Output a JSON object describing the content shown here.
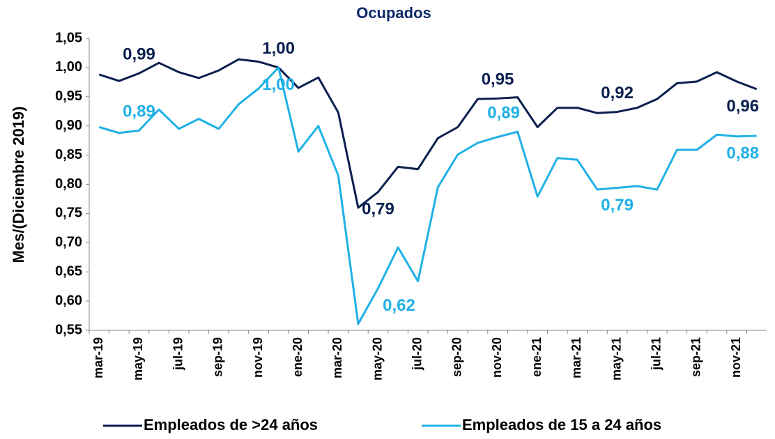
{
  "chart_data": {
    "type": "line",
    "title": "Ocupados",
    "y_label": "Mes/(Diciembre 2019)",
    "categories": [
      "mar-19",
      null,
      "may-19",
      null,
      "jul-19",
      null,
      "sep-19",
      null,
      "nov-19",
      null,
      "ene-20",
      null,
      "mar-20",
      null,
      "may-20",
      null,
      "jul-20",
      null,
      "sep-20",
      null,
      "nov-20",
      null,
      "ene-21",
      null,
      "mar-21",
      null,
      "may-21",
      null,
      "jul-21",
      null,
      "sep-21",
      null,
      "nov-21",
      null
    ],
    "series": [
      {
        "name": "Empleados de >24 años",
        "color": "#0b1f4f",
        "values": [
          0.988,
          0.977,
          0.99,
          1.008,
          0.992,
          0.982,
          0.995,
          1.014,
          1.01,
          1.0,
          0.965,
          0.983,
          0.923,
          0.76,
          0.787,
          0.83,
          0.826,
          0.879,
          0.898,
          0.946,
          0.947,
          0.949,
          0.898,
          0.931,
          0.931,
          0.922,
          0.924,
          0.931,
          0.946,
          0.973,
          0.976,
          0.992,
          0.976,
          0.963
        ],
        "value_labels": [
          null,
          null,
          "0,99",
          null,
          null,
          null,
          null,
          null,
          null,
          "1,00",
          null,
          null,
          null,
          null,
          "0,79",
          null,
          null,
          null,
          null,
          null,
          "0,95",
          null,
          null,
          null,
          null,
          null,
          "0,92",
          null,
          null,
          null,
          null,
          null,
          null,
          "0,96"
        ]
      },
      {
        "name": "Empleados de 15 a 24 años",
        "color": "#1fb1e6",
        "values": [
          0.898,
          0.888,
          0.892,
          0.928,
          0.895,
          0.912,
          0.895,
          0.937,
          0.964,
          1.0,
          0.856,
          0.9,
          0.815,
          0.561,
          0.622,
          0.692,
          0.634,
          0.795,
          0.851,
          0.871,
          0.881,
          0.89,
          0.779,
          0.845,
          0.842,
          0.791,
          0.794,
          0.797,
          0.791,
          0.859,
          0.859,
          0.885,
          0.882,
          0.883
        ],
        "value_labels": [
          null,
          null,
          "0,89",
          null,
          null,
          null,
          null,
          null,
          null,
          "1,00",
          null,
          null,
          null,
          null,
          "0,62",
          null,
          null,
          null,
          null,
          null,
          null,
          "0,89",
          null,
          null,
          null,
          null,
          "0,79",
          null,
          null,
          null,
          null,
          null,
          null,
          "0,88"
        ]
      }
    ],
    "ylim": [
      0.55,
      1.05
    ],
    "yticks": [
      {
        "value": 0.55,
        "label": "0,55"
      },
      {
        "value": 0.6,
        "label": "0,60"
      },
      {
        "value": 0.65,
        "label": "0,65"
      },
      {
        "value": 0.7,
        "label": "0,70"
      },
      {
        "value": 0.75,
        "label": "0,75"
      },
      {
        "value": 0.8,
        "label": "0,80"
      },
      {
        "value": 0.85,
        "label": "0,85"
      },
      {
        "value": 0.9,
        "label": "0,90"
      },
      {
        "value": 0.95,
        "label": "0,95"
      },
      {
        "value": 1.0,
        "label": "1,00"
      },
      {
        "value": 1.05,
        "label": "1,05"
      }
    ],
    "grid": false,
    "legend": "bottom"
  }
}
